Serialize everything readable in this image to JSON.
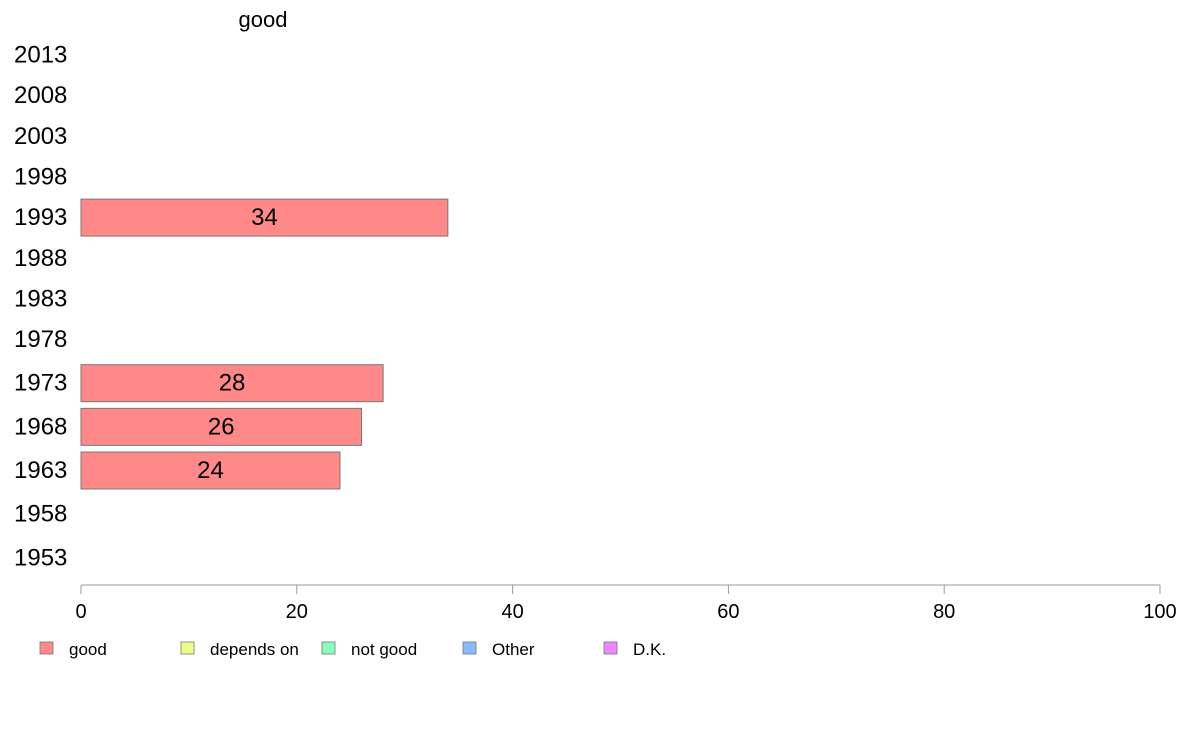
{
  "chart_data": {
    "type": "bar",
    "orientation": "horizontal",
    "title": "good",
    "categories": [
      "2013",
      "2008",
      "2003",
      "1998",
      "1993",
      "1988",
      "1983",
      "1978",
      "1973",
      "1968",
      "1963",
      "1958",
      "1953"
    ],
    "series": [
      {
        "name": "good",
        "color": "#ff8888",
        "values": [
          null,
          null,
          null,
          null,
          34,
          null,
          null,
          null,
          28,
          26,
          24,
          null,
          null
        ]
      }
    ],
    "xlim": [
      0,
      100
    ],
    "xticks": [
      0,
      20,
      40,
      60,
      80,
      100
    ],
    "grid": false,
    "legend": {
      "placement": "bottom",
      "items": [
        {
          "label": "good",
          "color": "#ff8888"
        },
        {
          "label": "depends on",
          "color": "#eeff88"
        },
        {
          "label": "not good",
          "color": "#88ffbb"
        },
        {
          "label": "Other",
          "color": "#88bbff"
        },
        {
          "label": "D.K.",
          "color": "#ee88ff"
        }
      ]
    }
  }
}
